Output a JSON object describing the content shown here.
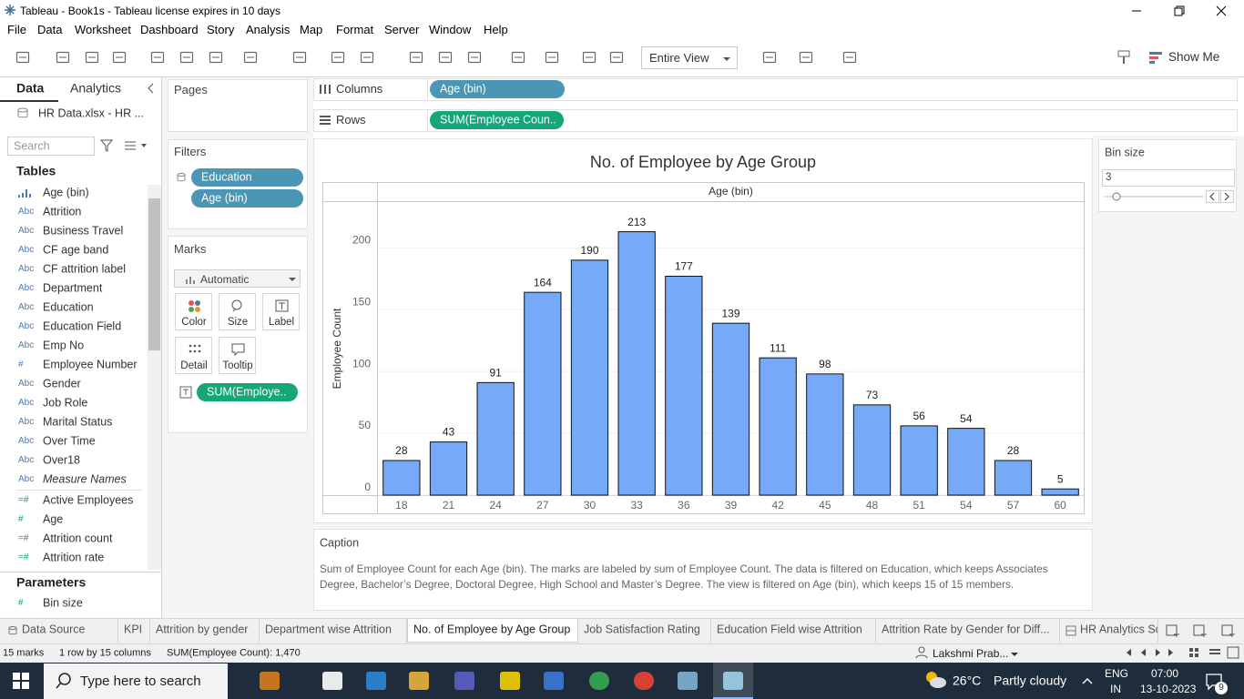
{
  "window": {
    "title": "Tableau - Book1s - Tableau license expires in 10 days"
  },
  "menu": [
    "File",
    "Data",
    "Worksheet",
    "Dashboard",
    "Story",
    "Analysis",
    "Map",
    "Format",
    "Server",
    "Window",
    "Help"
  ],
  "toolbar": {
    "fit": "Entire View",
    "show_me": "Show Me"
  },
  "data_pane": {
    "tabs": [
      "Data",
      "Analytics"
    ],
    "source": "HR Data.xlsx - HR ...",
    "search": "Search",
    "tables_title": "Tables",
    "bin_field": "Age (bin)",
    "dimensions": [
      {
        "icon": "Abc",
        "name": "Attrition"
      },
      {
        "icon": "Abc",
        "name": "Business Travel"
      },
      {
        "icon": "Abc",
        "name": "CF age band"
      },
      {
        "icon": "Abc",
        "name": "CF attrition label"
      },
      {
        "icon": "Abc",
        "name": "Department"
      },
      {
        "icon": "Abc",
        "name": "Education"
      },
      {
        "icon": "Abc",
        "name": "Education Field"
      },
      {
        "icon": "Abc",
        "name": "Emp No"
      },
      {
        "icon": "#",
        "name": "Employee Number"
      },
      {
        "icon": "Abc",
        "name": "Gender"
      },
      {
        "icon": "Abc",
        "name": "Job Role"
      },
      {
        "icon": "Abc",
        "name": "Marital Status"
      },
      {
        "icon": "Abc",
        "name": "Over Time"
      },
      {
        "icon": "Abc",
        "name": "Over18"
      },
      {
        "icon": "Abc",
        "name": "Measure Names",
        "italic": true
      }
    ],
    "measures": [
      {
        "icon": "=#",
        "name": "Active Employees"
      },
      {
        "icon": "#",
        "name": "Age"
      },
      {
        "icon": "=#",
        "name": "Attrition count"
      },
      {
        "icon": "=#",
        "name": "Attrition rate"
      }
    ],
    "parameters_title": "Parameters",
    "parameters": [
      {
        "icon": "#",
        "name": "Bin size"
      }
    ]
  },
  "cards": {
    "pages": "Pages",
    "filters_title": "Filters",
    "filters": [
      "Education",
      "Age (bin)"
    ],
    "marks_title": "Marks",
    "mark_type": "Automatic",
    "mark_buttons": [
      "Color",
      "Size",
      "Label",
      "Detail",
      "Tooltip"
    ],
    "mark_pill": "SUM(Employe.."
  },
  "shelves": {
    "columns_label": "Columns",
    "columns_pill": "Age (bin)",
    "rows_label": "Rows",
    "rows_pill": "SUM(Employee Coun.."
  },
  "chart_data": {
    "type": "bar",
    "title": "No. of Employee by Age Group",
    "header": "Age (bin)",
    "ylabel": "Employee Count",
    "categories": [
      "18",
      "21",
      "24",
      "27",
      "30",
      "33",
      "36",
      "39",
      "42",
      "45",
      "48",
      "51",
      "54",
      "57",
      "60"
    ],
    "values": [
      28,
      43,
      91,
      164,
      190,
      213,
      177,
      139,
      111,
      98,
      73,
      56,
      54,
      28,
      5
    ],
    "color": "#76aaf8",
    "ylim": [
      0,
      237
    ],
    "yticks": [
      0,
      50,
      100,
      150,
      200
    ],
    "grid": true
  },
  "bin_size": {
    "title": "Bin size",
    "value": 3
  },
  "caption": {
    "title": "Caption",
    "text": "Sum of Employee Count for each Age (bin).  The marks are labeled by sum of Employee Count. The data is filtered on Education, which keeps Associates Degree, Bachelor’s Degree, Doctoral Degree, High School and Master’s Degree. The view is filtered on Age (bin), which keeps 15 of 15 members."
  },
  "sheet_tabs": {
    "items": [
      "Data Source",
      "KPI",
      "Attrition by gender",
      "Department wise Attrition",
      "No. of Employee by Age Group",
      "Job Satisfaction Rating",
      "Education Field wise Attrition",
      "Attrition Rate by Gender for Diff...",
      "HR Analytics Sc"
    ],
    "active": 4
  },
  "status": {
    "items": [
      "15 marks",
      "1 row by 15 columns",
      "SUM(Employee Count): 1,470"
    ],
    "user": "Lakshmi Prab..."
  },
  "taskbar": {
    "search": "Type here to search",
    "temperature": "26°C",
    "weather": "Partly cloudy",
    "lang": "ENG",
    "region": "IN",
    "time": "07:00",
    "date": "13-10-2023",
    "notifications": 9
  }
}
